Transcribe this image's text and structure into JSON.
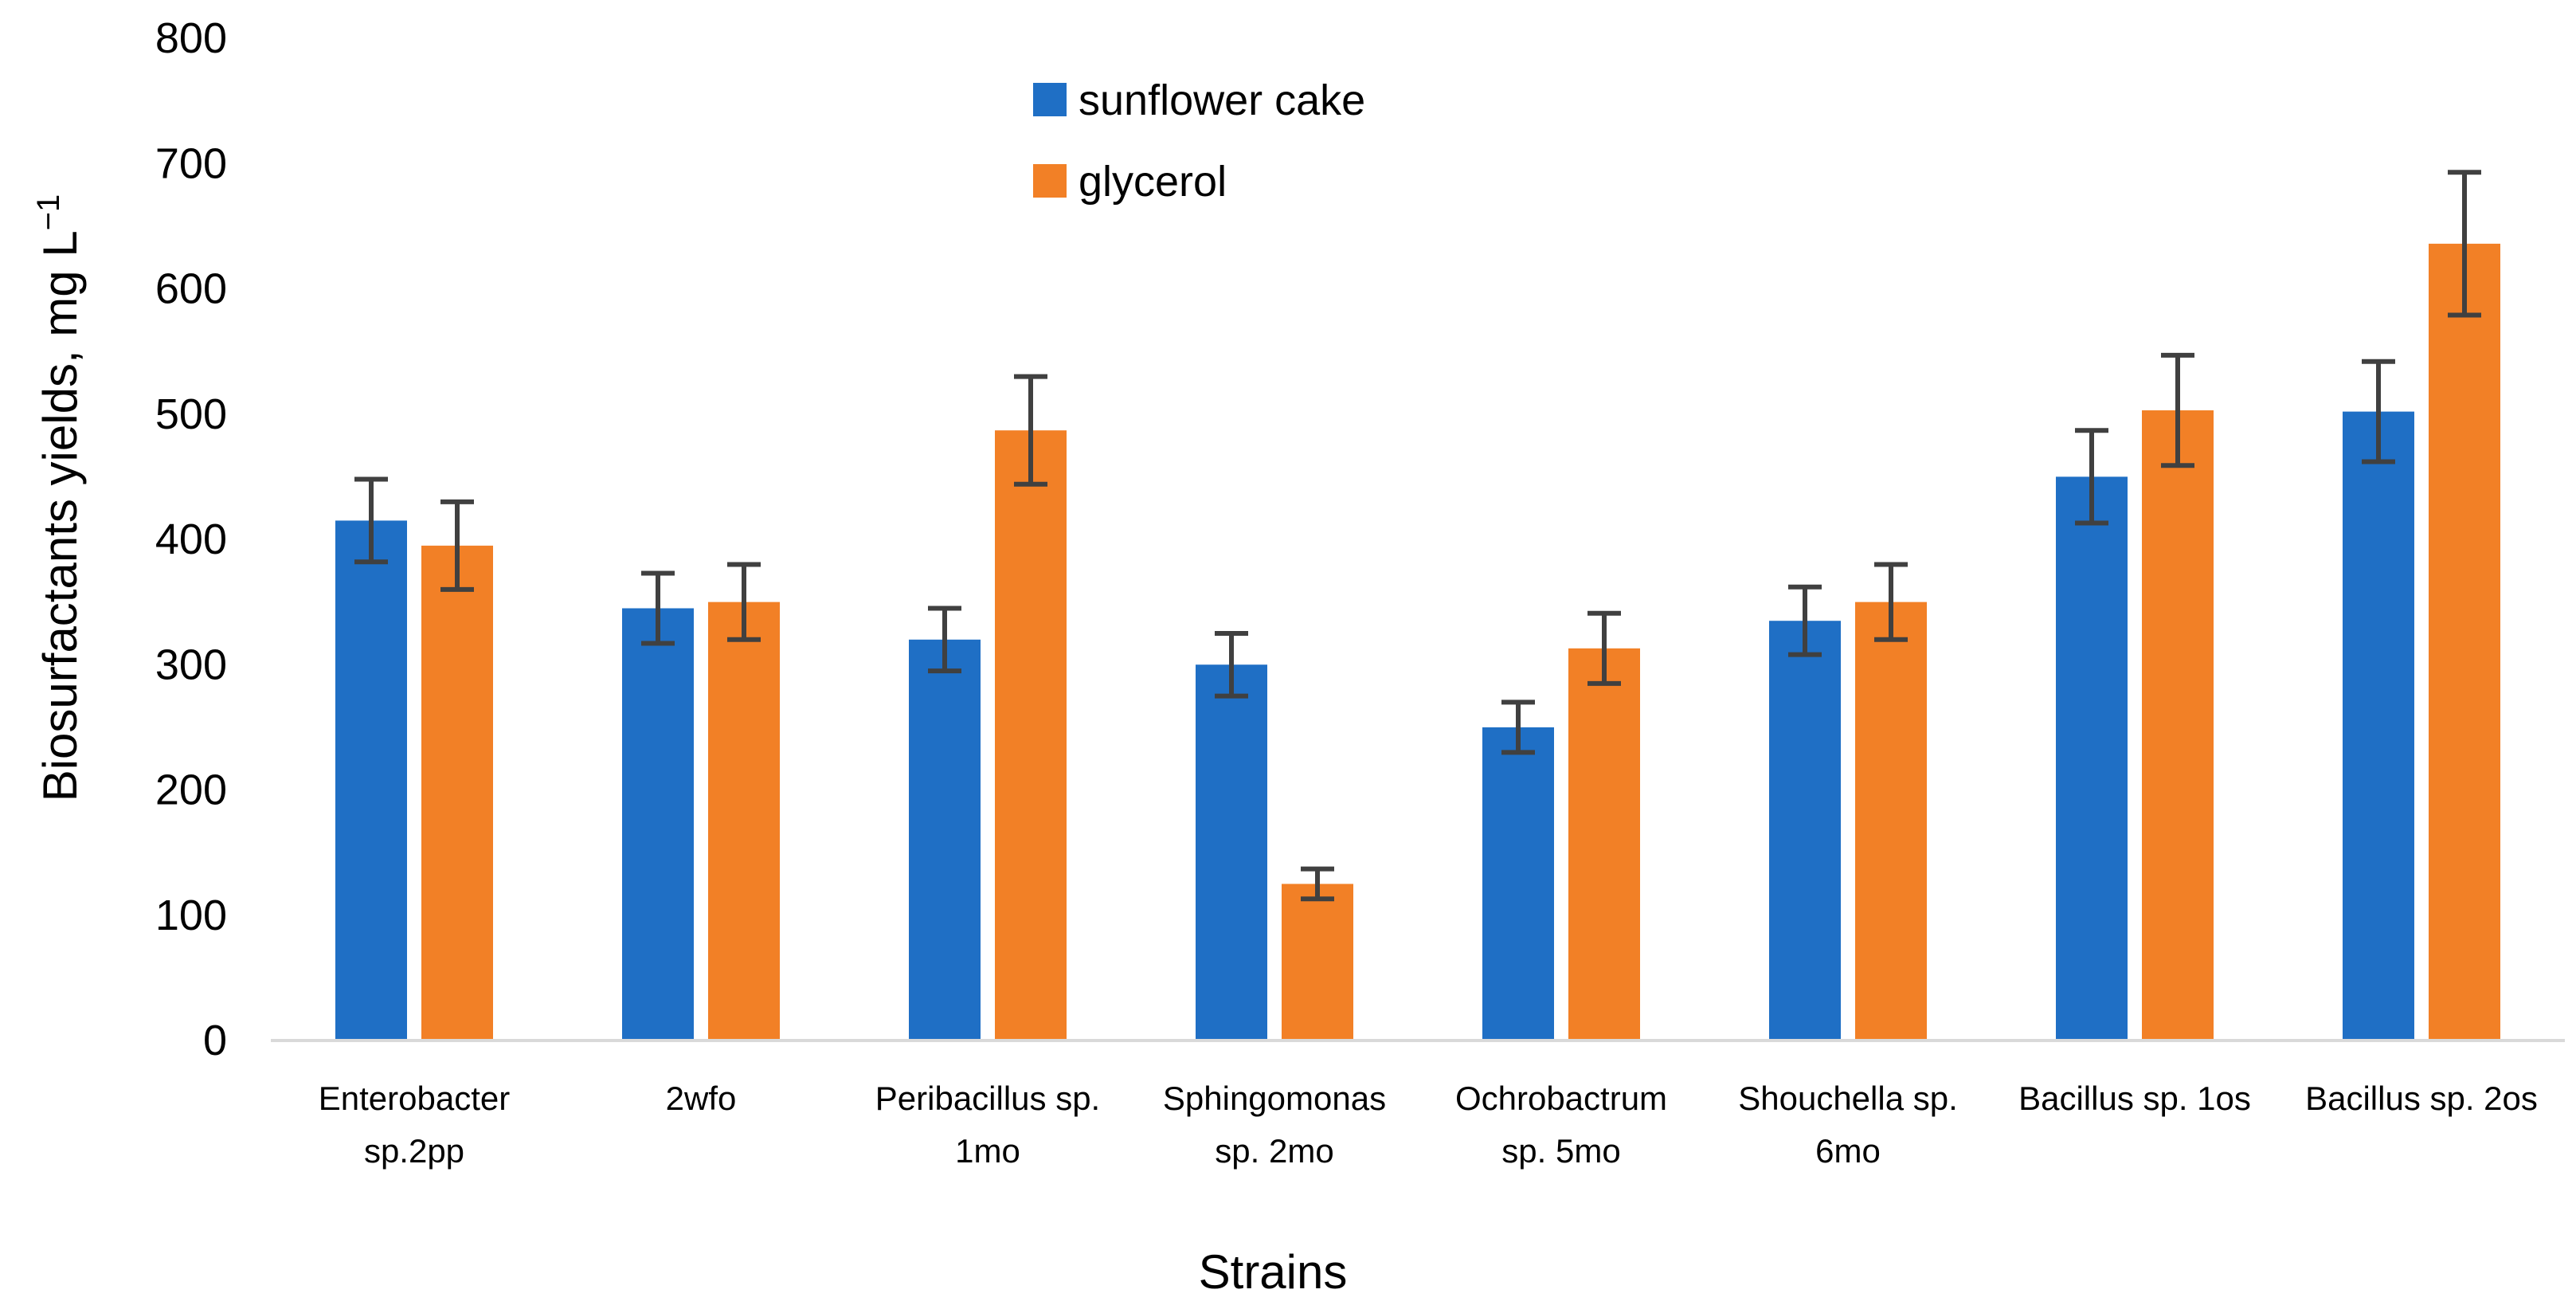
{
  "chart_data": {
    "type": "bar",
    "title": "",
    "xlabel": "Strains",
    "ylabel": "Biosurfactants yields, mg L",
    "ylabel_superscript": "−1",
    "ylim": [
      0,
      800
    ],
    "yticks": [
      0,
      100,
      200,
      300,
      400,
      500,
      600,
      700,
      800
    ],
    "grid": false,
    "legend_position": "top-center",
    "categories": [
      [
        "Enterobacter",
        "sp.2pp"
      ],
      [
        "2wfo"
      ],
      [
        "Peribacillus sp.",
        "1mo"
      ],
      [
        "Sphingomonas",
        "sp. 2mo"
      ],
      [
        "Ochrobactrum",
        "sp. 5mo"
      ],
      [
        "Shouchella sp.",
        "6mo"
      ],
      [
        "Bacillus sp. 1os"
      ],
      [
        "Bacillus sp. 2os"
      ]
    ],
    "series": [
      {
        "name": "sunflower cake",
        "color": "#1f6fc5",
        "values": [
          415,
          345,
          320,
          300,
          250,
          335,
          450,
          502
        ],
        "errors": [
          33,
          28,
          25,
          25,
          20,
          27,
          37,
          40
        ]
      },
      {
        "name": "glycerol",
        "color": "#f28026",
        "values": [
          395,
          350,
          487,
          125,
          313,
          350,
          503,
          636
        ],
        "errors": [
          35,
          30,
          43,
          12,
          28,
          30,
          44,
          57
        ]
      }
    ],
    "axis_color": "#d9d9d9",
    "error_bar_color": "#404040"
  }
}
